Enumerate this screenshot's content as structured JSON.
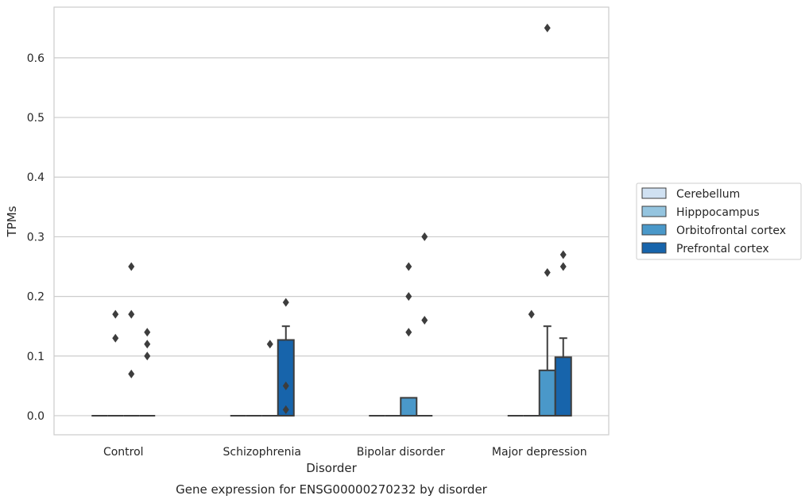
{
  "chart_data": {
    "type": "box",
    "title": "Gene expression for ENSG00000270232 by disorder",
    "xlabel": "Disorder",
    "ylabel": "TPMs",
    "ylim": [
      -0.032,
      0.685
    ],
    "yticks": [
      "0.0",
      "0.1",
      "0.2",
      "0.3",
      "0.4",
      "0.5",
      "0.6"
    ],
    "grid": true,
    "legend_position": "right",
    "categories": [
      "Control",
      "Schizophrenia",
      "Bipolar disorder",
      "Major depression"
    ],
    "series": [
      {
        "name": "Cerebellum",
        "color": "#d0e1f2",
        "boxes": [
          {
            "q1": 0,
            "median": 0,
            "q3": 0,
            "whisker_low": 0,
            "whisker_high": 0,
            "outliers": []
          },
          {
            "q1": 0,
            "median": 0,
            "q3": 0,
            "whisker_low": 0,
            "whisker_high": 0,
            "outliers": []
          },
          {
            "q1": 0,
            "median": 0,
            "q3": 0,
            "whisker_low": 0,
            "whisker_high": 0,
            "outliers": []
          },
          {
            "q1": 0,
            "median": 0,
            "q3": 0,
            "whisker_low": 0,
            "whisker_high": 0,
            "outliers": []
          }
        ]
      },
      {
        "name": "Hipppocampus",
        "color": "#94c4df",
        "boxes": [
          {
            "q1": 0,
            "median": 0,
            "q3": 0,
            "whisker_low": 0,
            "whisker_high": 0,
            "outliers": [
              0.13,
              0.17
            ]
          },
          {
            "q1": 0,
            "median": 0,
            "q3": 0,
            "whisker_low": 0,
            "whisker_high": 0,
            "outliers": []
          },
          {
            "q1": 0,
            "median": 0,
            "q3": 0,
            "whisker_low": 0,
            "whisker_high": 0,
            "outliers": []
          },
          {
            "q1": 0,
            "median": 0,
            "q3": 0,
            "whisker_low": 0,
            "whisker_high": 0,
            "outliers": [
              0.17
            ]
          }
        ]
      },
      {
        "name": "Orbitofrontal cortex",
        "color": "#4a98c9",
        "boxes": [
          {
            "q1": 0,
            "median": 0,
            "q3": 0,
            "whisker_low": 0,
            "whisker_high": 0,
            "outliers": [
              0.07,
              0.17,
              0.25
            ]
          },
          {
            "q1": 0,
            "median": 0,
            "q3": 0,
            "whisker_low": 0,
            "whisker_high": 0,
            "outliers": [
              0.12
            ]
          },
          {
            "q1": 0,
            "median": 0,
            "q3": 0.03,
            "whisker_low": 0,
            "whisker_high": 0.03,
            "outliers": [
              0.14,
              0.2,
              0.25
            ]
          },
          {
            "q1": 0,
            "median": 0,
            "q3": 0.076,
            "whisker_low": 0,
            "whisker_high": 0.15,
            "outliers": [
              0.24,
              0.65
            ]
          }
        ]
      },
      {
        "name": "Prefrontal cortex",
        "color": "#1764ab",
        "boxes": [
          {
            "q1": 0,
            "median": 0,
            "q3": 0,
            "whisker_low": 0,
            "whisker_high": 0,
            "outliers": [
              0.1,
              0.12,
              0.14
            ]
          },
          {
            "q1": 0,
            "median": 0,
            "q3": 0.127,
            "whisker_low": 0,
            "whisker_high": 0.15,
            "outliers": [
              0.01,
              0.05,
              0.19
            ]
          },
          {
            "q1": 0,
            "median": 0,
            "q3": 0,
            "whisker_low": 0,
            "whisker_high": 0,
            "outliers": [
              0.16,
              0.3
            ]
          },
          {
            "q1": 0,
            "median": 0,
            "q3": 0.098,
            "whisker_low": 0,
            "whisker_high": 0.13,
            "outliers": [
              0.25,
              0.27
            ]
          }
        ]
      }
    ]
  }
}
